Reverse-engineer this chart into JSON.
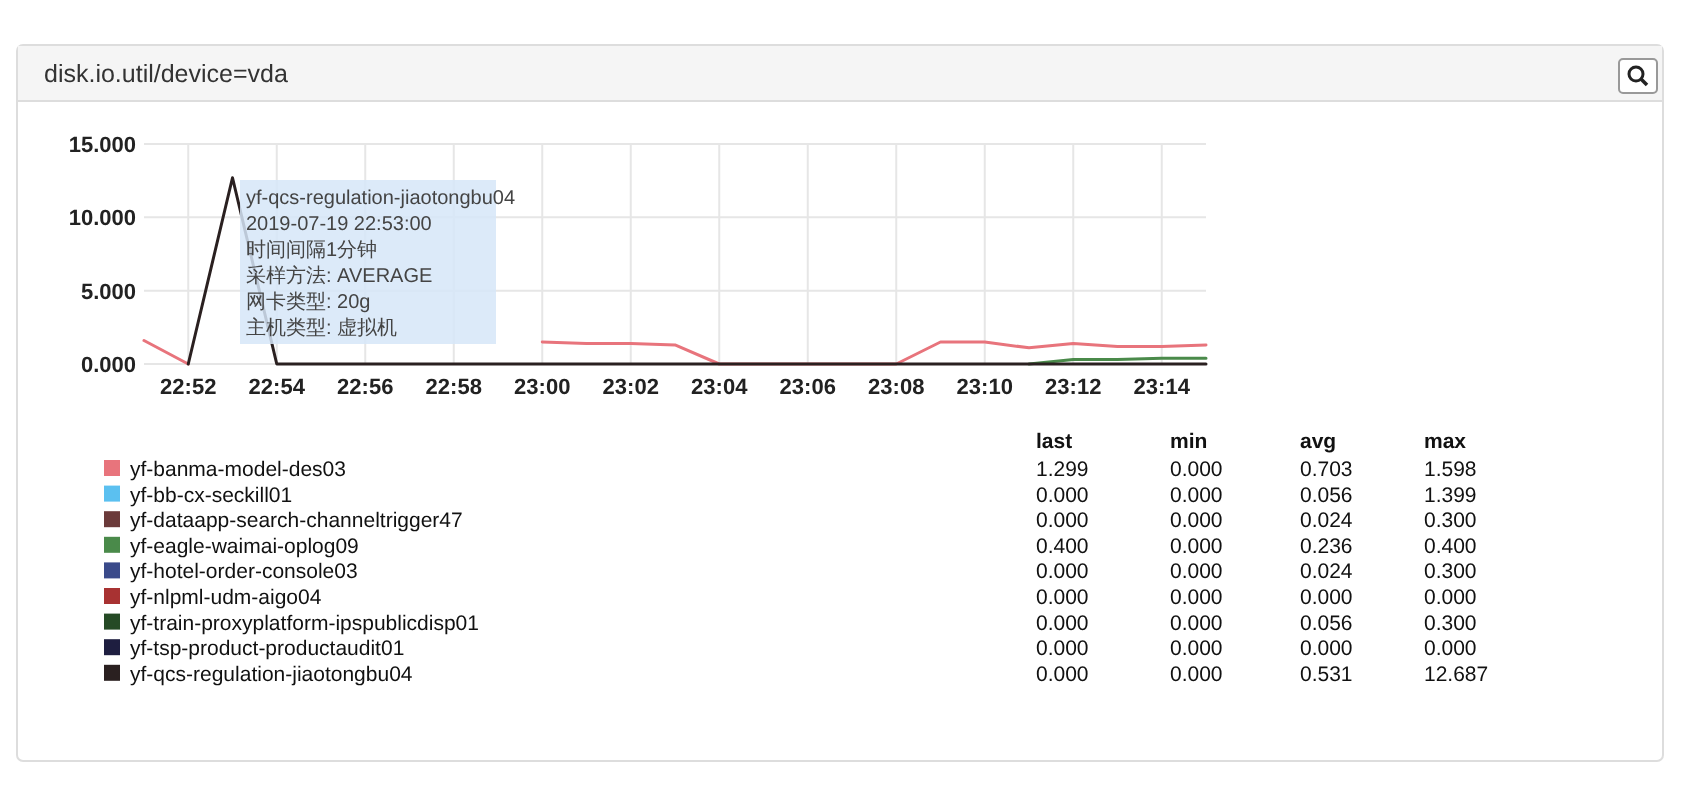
{
  "chart_data": {
    "type": "line",
    "title": "disk.io.util/device=vda",
    "x": [
      "2019-07-19T22:51",
      "2019-07-19T22:52",
      "2019-07-19T22:53",
      "2019-07-19T22:54",
      "2019-07-19T22:55",
      "2019-07-19T22:56",
      "2019-07-19T22:57",
      "2019-07-19T22:58",
      "2019-07-19T22:59",
      "2019-07-19T23:00",
      "2019-07-19T23:01",
      "2019-07-19T23:02",
      "2019-07-19T23:03",
      "2019-07-19T23:04",
      "2019-07-19T23:05",
      "2019-07-19T23:06",
      "2019-07-19T23:07",
      "2019-07-19T23:08",
      "2019-07-19T23:09",
      "2019-07-19T23:10",
      "2019-07-19T23:11",
      "2019-07-19T23:12",
      "2019-07-19T23:13",
      "2019-07-19T23:14",
      "2019-07-19T23:15"
    ],
    "series": [
      {
        "name": "yf-banma-model-des03",
        "color": "#e8747c",
        "values": [
          1.6,
          0.0,
          null,
          null,
          null,
          null,
          null,
          null,
          null,
          1.5,
          1.4,
          1.4,
          1.3,
          0.0,
          0.0,
          0.0,
          0.0,
          0.0,
          1.5,
          1.5,
          1.1,
          1.4,
          1.2,
          1.2,
          1.3
        ]
      },
      {
        "name": "yf-bb-cx-seckill01",
        "color": "#5bc0f0",
        "values": [
          null,
          null,
          null,
          null,
          null,
          null,
          null,
          null,
          null,
          null,
          null,
          null,
          null,
          null,
          null,
          null,
          null,
          null,
          null,
          null,
          null,
          null,
          null,
          null,
          null
        ]
      },
      {
        "name": "yf-dataapp-search-channeltrigger47",
        "color": "#6b3a3a",
        "values": [
          null,
          null,
          null,
          null,
          null,
          null,
          null,
          null,
          null,
          null,
          null,
          null,
          null,
          null,
          null,
          null,
          null,
          null,
          null,
          null,
          null,
          null,
          null,
          null,
          null
        ]
      },
      {
        "name": "yf-eagle-waimai-oplog09",
        "color": "#4a8a4a",
        "values": [
          null,
          null,
          null,
          null,
          null,
          null,
          null,
          null,
          null,
          null,
          null,
          null,
          null,
          null,
          null,
          null,
          null,
          null,
          null,
          null,
          0,
          0.3,
          0.3,
          0.4,
          0.4
        ]
      },
      {
        "name": "yf-hotel-order-console03",
        "color": "#3a4a8a",
        "values": [
          null,
          null,
          null,
          null,
          null,
          null,
          null,
          null,
          null,
          null,
          null,
          null,
          null,
          null,
          null,
          null,
          null,
          null,
          null,
          null,
          null,
          null,
          null,
          null,
          null
        ]
      },
      {
        "name": "yf-nlpml-udm-aigo04",
        "color": "#a83232",
        "values": [
          null,
          null,
          null,
          null,
          null,
          null,
          null,
          null,
          null,
          null,
          null,
          null,
          null,
          null,
          null,
          null,
          null,
          null,
          null,
          null,
          null,
          null,
          null,
          null,
          null
        ]
      },
      {
        "name": "yf-train-proxyplatform-ipspublicdisp01",
        "color": "#254a25",
        "values": [
          null,
          null,
          null,
          null,
          null,
          null,
          null,
          null,
          null,
          null,
          null,
          null,
          null,
          null,
          null,
          null,
          null,
          null,
          null,
          null,
          null,
          null,
          null,
          null,
          null
        ]
      },
      {
        "name": "yf-tsp-product-productaudit01",
        "color": "#1e1e40",
        "values": [
          null,
          null,
          null,
          null,
          null,
          null,
          null,
          null,
          null,
          null,
          null,
          null,
          null,
          null,
          null,
          null,
          null,
          null,
          null,
          null,
          null,
          null,
          null,
          null,
          null
        ]
      },
      {
        "name": "yf-qcs-regulation-jiaotongbu04",
        "color": "#2a2020",
        "values": [
          null,
          0,
          12.7,
          0,
          0,
          0,
          0,
          0,
          0,
          0,
          0,
          0,
          0,
          0,
          0,
          0,
          0,
          0,
          0,
          0,
          0,
          0,
          0,
          0,
          0
        ]
      }
    ],
    "xlim": [
      "2019-07-19T22:51",
      "2019-07-19T23:15"
    ],
    "xticks": [
      {
        "value": "2019-07-19T22:52",
        "label": "22:52"
      },
      {
        "value": "2019-07-19T22:54",
        "label": "22:54"
      },
      {
        "value": "2019-07-19T22:56",
        "label": "22:56"
      },
      {
        "value": "2019-07-19T22:58",
        "label": "22:58"
      },
      {
        "value": "2019-07-19T23:00",
        "label": "23:00"
      },
      {
        "value": "2019-07-19T23:02",
        "label": "23:02"
      },
      {
        "value": "2019-07-19T23:04",
        "label": "23:04"
      },
      {
        "value": "2019-07-19T23:06",
        "label": "23:06"
      },
      {
        "value": "2019-07-19T23:08",
        "label": "23:08"
      },
      {
        "value": "2019-07-19T23:10",
        "label": "23:10"
      },
      {
        "value": "2019-07-19T23:12",
        "label": "23:12"
      },
      {
        "value": "2019-07-19T23:14",
        "label": "23:14"
      }
    ],
    "ylim": [
      0,
      15
    ],
    "yticks": [
      {
        "value": 0,
        "label": "0.000"
      },
      {
        "value": 5,
        "label": "5.000"
      },
      {
        "value": 10,
        "label": "10.000"
      },
      {
        "value": 15,
        "label": "15.000"
      }
    ],
    "grid": true,
    "legend": "bottom",
    "annotations": [
      "yf-qcs-regulation-jiaotongbu04",
      "2019-07-19 22:53:00",
      "时间间隔1分钟",
      "采样方法: AVERAGE",
      "网卡类型: 20g",
      "主机类型: 虚拟机",
      "last",
      "min",
      "avg",
      "max",
      "1.299",
      "0.000",
      "0.703",
      "1.598",
      "0.000",
      "0.000",
      "0.056",
      "1.399",
      "0.000",
      "0.000",
      "0.024",
      "0.300",
      "0.400",
      "0.000",
      "0.236",
      "0.400",
      "0.000",
      "0.000",
      "0.024",
      "0.300",
      "0.000",
      "0.000",
      "0.000",
      "0.000",
      "0.000",
      "0.000",
      "0.056",
      "0.300",
      "0.000",
      "0.000",
      "0.000",
      "0.000",
      "0.000",
      "0.000",
      "0.531",
      "12.687"
    ]
  }
}
